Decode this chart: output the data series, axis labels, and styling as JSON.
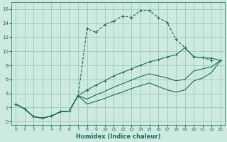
{
  "xlabel": "Humidex (Indice chaleur)",
  "background_color": "#cceae0",
  "grid_color": "#9bbfb5",
  "line_color": "#1a6b5a",
  "xlim": [
    -0.5,
    23.5
  ],
  "ylim": [
    -0.5,
    17.0
  ],
  "xticks": [
    0,
    1,
    2,
    3,
    4,
    5,
    6,
    7,
    8,
    9,
    10,
    11,
    12,
    13,
    14,
    15,
    16,
    17,
    18,
    19,
    20,
    21,
    22,
    23
  ],
  "yticks": [
    0,
    2,
    4,
    6,
    8,
    10,
    12,
    14,
    16
  ],
  "line1_x": [
    0,
    1,
    2,
    3,
    4,
    5,
    6,
    7,
    8,
    9,
    10,
    11,
    12,
    13,
    14,
    15,
    16,
    17,
    18,
    19,
    20,
    21,
    22
  ],
  "line1_y": [
    2.5,
    1.8,
    0.7,
    0.5,
    0.8,
    1.4,
    1.5,
    3.7,
    13.2,
    12.7,
    13.8,
    14.3,
    15.0,
    14.8,
    15.8,
    15.8,
    14.8,
    14.1,
    11.7,
    10.5,
    9.2,
    9.1,
    8.7
  ],
  "line2_x": [
    0,
    1,
    2,
    3,
    4,
    5,
    6,
    7,
    8,
    9,
    10,
    11,
    12,
    13,
    14,
    15,
    16,
    17,
    18,
    19,
    20,
    21,
    22,
    23
  ],
  "line2_y": [
    2.5,
    1.8,
    0.7,
    0.5,
    0.8,
    1.4,
    1.5,
    3.7,
    4.5,
    5.2,
    5.8,
    6.5,
    7.0,
    7.5,
    8.0,
    8.5,
    8.8,
    9.2,
    9.5,
    10.5,
    9.2,
    9.1,
    9.0,
    8.7
  ],
  "line3_x": [
    0,
    1,
    2,
    3,
    4,
    5,
    6,
    7,
    8,
    9,
    10,
    11,
    12,
    13,
    14,
    15,
    16,
    17,
    18,
    19,
    20,
    21,
    22,
    23
  ],
  "line3_y": [
    2.5,
    1.8,
    0.7,
    0.5,
    0.8,
    1.4,
    1.5,
    3.7,
    3.2,
    3.8,
    4.3,
    4.9,
    5.4,
    5.9,
    6.4,
    6.8,
    6.5,
    6.2,
    5.8,
    6.0,
    7.2,
    7.5,
    7.8,
    8.7
  ],
  "line4_x": [
    0,
    1,
    2,
    3,
    4,
    5,
    6,
    7,
    8,
    9,
    10,
    11,
    12,
    13,
    14,
    15,
    16,
    17,
    18,
    19,
    20,
    21,
    22,
    23
  ],
  "line4_y": [
    2.5,
    1.8,
    0.7,
    0.5,
    0.8,
    1.4,
    1.5,
    3.7,
    2.5,
    2.9,
    3.3,
    3.8,
    4.2,
    4.7,
    5.1,
    5.5,
    5.0,
    4.5,
    4.2,
    4.5,
    5.8,
    6.2,
    7.0,
    8.7
  ]
}
